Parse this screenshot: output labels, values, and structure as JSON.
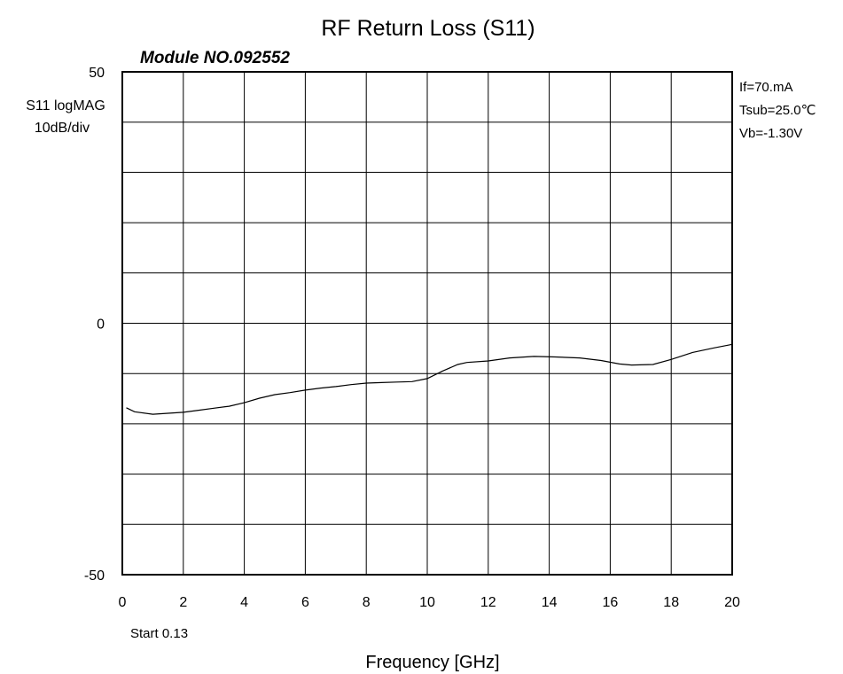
{
  "chart_data": {
    "type": "line",
    "title": "RF Return Loss (S11)",
    "subtitle": "Module NO.092552",
    "ylabel_lines": [
      "S11 logMAG",
      "10dB/div"
    ],
    "xlabel": "Frequency [GHz]",
    "start_label": "Start  0.13",
    "annotations": [
      "If=70.mA",
      "Tsub=25.0℃",
      "Vb=-1.30V"
    ],
    "xlim": [
      0,
      20
    ],
    "ylim": [
      -50,
      50
    ],
    "x_ticks": [
      "0",
      "2",
      "4",
      "6",
      "8",
      "10",
      "12",
      "14",
      "16",
      "18",
      "20"
    ],
    "x_tick_values": [
      0,
      2,
      4,
      6,
      8,
      10,
      12,
      14,
      16,
      18,
      20
    ],
    "y_ticks": [
      "50",
      "0",
      "-50"
    ],
    "y_tick_values": [
      50,
      0,
      -50
    ],
    "grid": true,
    "grid_x_divisions": 10,
    "grid_y_divisions": 10,
    "line_color": "#000000",
    "series": [
      {
        "x": [
          0.13,
          0.4,
          1.0,
          1.5,
          2.0,
          2.5,
          3.0,
          3.5,
          4.0,
          4.5,
          5.0,
          5.5,
          6.0,
          6.5,
          7.0,
          7.5,
          8.0,
          8.5,
          9.0,
          9.5,
          10.0,
          10.5,
          11.0,
          11.3,
          12.0,
          12.7,
          13.5,
          14.2,
          15.0,
          15.7,
          16.3,
          16.7,
          17.4,
          18.0,
          18.7,
          19.4,
          20.0
        ],
        "y": [
          -16.8,
          -17.6,
          -18.1,
          -17.9,
          -17.7,
          -17.3,
          -16.9,
          -16.5,
          -15.8,
          -14.9,
          -14.2,
          -13.8,
          -13.3,
          -12.9,
          -12.6,
          -12.2,
          -11.9,
          -11.8,
          -11.7,
          -11.6,
          -11.0,
          -9.5,
          -8.2,
          -7.8,
          -7.5,
          -6.9,
          -6.6,
          -6.7,
          -6.9,
          -7.4,
          -8.1,
          -8.3,
          -8.2,
          -7.2,
          -5.8,
          -4.9,
          -4.2
        ]
      }
    ]
  }
}
